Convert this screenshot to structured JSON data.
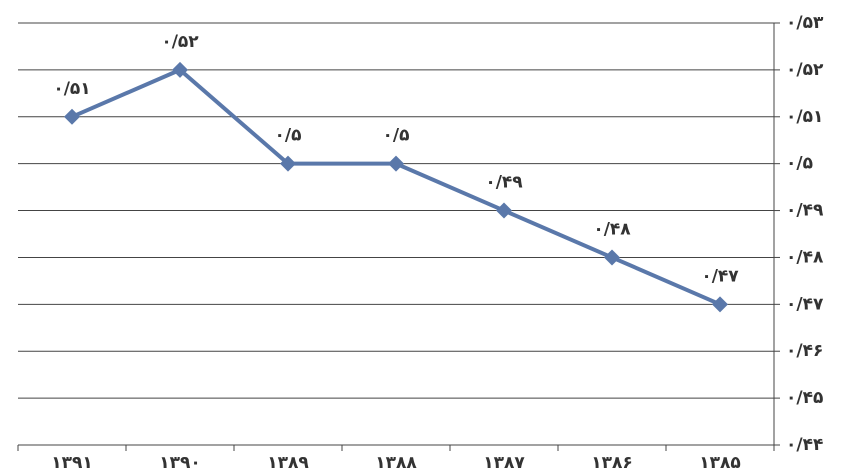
{
  "chart_data": {
    "type": "line",
    "categories": [
      "۱۳۹۱",
      "۱۳۹۰",
      "۱۳۸۹",
      "۱۳۸۸",
      "۱۳۸۷",
      "۱۳۸۶",
      "۱۳۸۵"
    ],
    "values": [
      0.51,
      0.52,
      0.5,
      0.5,
      0.49,
      0.48,
      0.47
    ],
    "value_labels": [
      "۰/۵۱",
      "۰/۵۲",
      "۰/۵",
      "۰/۵",
      "۰/۴۹",
      "۰/۴۸",
      "۰/۴۷"
    ],
    "color": "#5a78aa",
    "ylim": [
      0.44,
      0.53
    ],
    "yticks": [
      {
        "value": 0.44,
        "label": "۰/۴۴"
      },
      {
        "value": 0.45,
        "label": "۰/۴۵"
      },
      {
        "value": 0.46,
        "label": "۰/۴۶"
      },
      {
        "value": 0.47,
        "label": "۰/۴۷"
      },
      {
        "value": 0.48,
        "label": "۰/۴۸"
      },
      {
        "value": 0.49,
        "label": "۰/۴۹"
      },
      {
        "value": 0.5,
        "label": "۰/۵"
      },
      {
        "value": 0.51,
        "label": "۰/۵۱"
      },
      {
        "value": 0.52,
        "label": "۰/۵۲"
      },
      {
        "value": 0.53,
        "label": "۰/۵۳"
      }
    ],
    "y_axis_side": "right",
    "grid": true
  }
}
